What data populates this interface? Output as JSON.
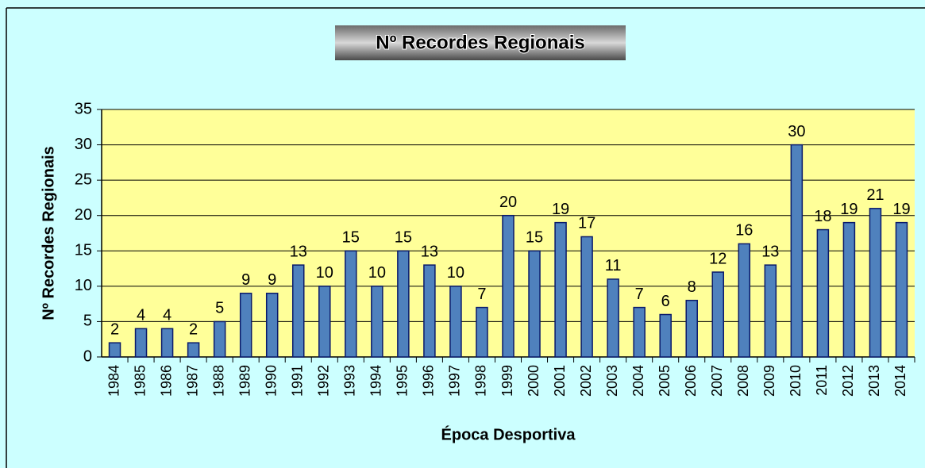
{
  "chart_data": {
    "type": "bar",
    "title": "Nº Recordes Regionais",
    "x_label": "Época Desportiva",
    "y_label": "Nº Recordes Regionais",
    "categories": [
      "1984",
      "1985",
      "1986",
      "1987",
      "1988",
      "1989",
      "1990",
      "1991",
      "1992",
      "1993",
      "1994",
      "1995",
      "1996",
      "1997",
      "1998",
      "1999",
      "2000",
      "2001",
      "2002",
      "2003",
      "2004",
      "2005",
      "2006",
      "2007",
      "2008",
      "2009",
      "2010",
      "2011",
      "2012",
      "2013",
      "2014"
    ],
    "values": [
      2,
      4,
      4,
      2,
      5,
      9,
      9,
      13,
      10,
      15,
      10,
      15,
      13,
      10,
      7,
      20,
      15,
      19,
      17,
      11,
      7,
      6,
      8,
      12,
      16,
      13,
      30,
      18,
      19,
      21,
      19
    ],
    "color": "#4f81bd",
    "ylim": [
      0,
      35
    ],
    "yticks": [
      0,
      5,
      10,
      15,
      20,
      25,
      30,
      35
    ],
    "grid": true
  }
}
